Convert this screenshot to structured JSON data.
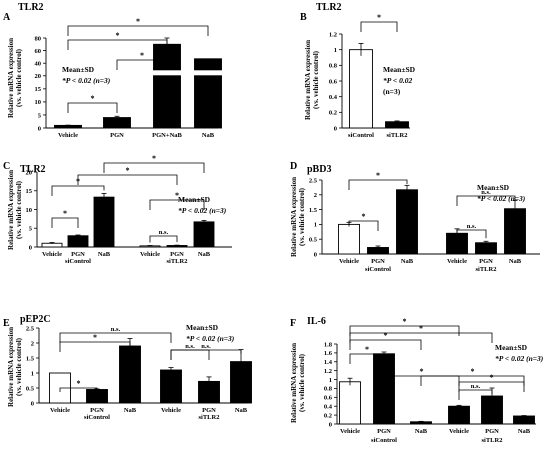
{
  "chart_data": [
    {
      "type": "bar",
      "panel_label": "A",
      "title": "TLR2",
      "ylabel": "Relative mRNA expression (vs. vehicle control)",
      "yticks": [
        "0",
        "5",
        "10",
        "15",
        "20",
        "40",
        "60",
        "80"
      ],
      "categories": [
        "Vehicle",
        "PGN",
        "PGN+NaB",
        "NaB"
      ],
      "values": [
        1.0,
        4.0,
        70,
        47
      ],
      "errors": [
        0.1,
        0.5,
        10,
        0
      ],
      "fills": [
        "#000000",
        "#000000",
        "#000000",
        "#000000"
      ],
      "annotation": [
        "Mean±SD",
        "*P < 0.02 (n=3)"
      ],
      "brackets": [
        {
          "from": 0,
          "to": 1,
          "label": "*"
        },
        {
          "from": 1,
          "to": 2,
          "label": "*"
        },
        {
          "from": 0,
          "to": 2,
          "label": "*"
        },
        {
          "from": 0,
          "to": 3,
          "label": "*"
        }
      ]
    },
    {
      "type": "bar",
      "panel_label": "B",
      "title": "TLR2",
      "ylabel": "Relative mRNA expression (vs. vehicle control)",
      "ylim": [
        0,
        1.2
      ],
      "yticks": [
        "0",
        "0.2",
        "0.4",
        "0.6",
        "0.8",
        "1",
        "1.2"
      ],
      "categories": [
        "siControl",
        "siTLR2"
      ],
      "values": [
        1.0,
        0.08
      ],
      "errors": [
        0.08,
        0.01
      ],
      "fills": [
        "#ffffff",
        "#000000"
      ],
      "annotation": [
        "Mean±SD",
        "*P < 0.02",
        "(n=3)"
      ],
      "brackets": [
        {
          "from": 0,
          "to": 1,
          "label": "*"
        }
      ]
    },
    {
      "type": "bar",
      "panel_label": "C",
      "title": "TLR2",
      "ylabel": "Relative mRNA expression (vs. vehicle control)",
      "ylim": [
        0,
        20
      ],
      "yticks": [
        "0",
        "5",
        "10",
        "15",
        "20"
      ],
      "categories": [
        "Vehicle",
        "PGN",
        "NaB",
        "Vehicle",
        "PGN",
        "NaB"
      ],
      "groups": [
        "siControl",
        "siTLR2"
      ],
      "values": [
        1.0,
        3.0,
        13.3,
        0.3,
        0.4,
        6.7
      ],
      "errors": [
        0.2,
        0.2,
        1.0,
        0.1,
        0.1,
        0.4
      ],
      "fills": [
        "#ffffff",
        "#000000",
        "#000000",
        "#ffffff",
        "#000000",
        "#000000"
      ],
      "annotation": [
        "Mean±SD",
        "*P < 0.02 (n=3)"
      ],
      "brackets": [
        {
          "from": 0,
          "to": 1,
          "label": "*"
        },
        {
          "from": 0,
          "to": 2,
          "label": "*"
        },
        {
          "from": 2,
          "to": 5,
          "label": "*"
        },
        {
          "from": 1,
          "to": 4,
          "label": "*"
        },
        {
          "from": 3,
          "to": 4,
          "label": "n.s."
        },
        {
          "from": 3,
          "to": 5,
          "label": "*"
        }
      ]
    },
    {
      "type": "bar",
      "panel_label": "D",
      "title": "pBD3",
      "ylabel": "Relative mRNA expression (vs. vehicle control)",
      "ylim": [
        0,
        2.5
      ],
      "yticks": [
        "0",
        "0.5",
        "1",
        "1.5",
        "2",
        "2.5"
      ],
      "categories": [
        "Vehicle",
        "PGN",
        "NaB",
        "Vehicle",
        "PGN",
        "NaB"
      ],
      "groups": [
        "siControl",
        "siTLR2"
      ],
      "values": [
        1.0,
        0.22,
        2.17,
        0.7,
        0.38,
        1.53
      ],
      "errors": [
        0.07,
        0.05,
        0.15,
        0.15,
        0.05,
        0.28
      ],
      "fills": [
        "#ffffff",
        "#000000",
        "#000000",
        "#000000",
        "#000000",
        "#000000"
      ],
      "annotation": [
        "Mean±SD",
        "*P < 0.02 (n=3)"
      ],
      "brackets": [
        {
          "from": 0,
          "to": 1,
          "label": "*"
        },
        {
          "from": 0,
          "to": 2,
          "label": "*"
        },
        {
          "from": 3,
          "to": 4,
          "label": "n.s."
        },
        {
          "from": 3,
          "to": 5,
          "label": "n.s."
        }
      ]
    },
    {
      "type": "bar",
      "panel_label": "E",
      "title": "pEP2C",
      "ylabel": "Relative mRNA expression (vs. vehicle control)",
      "ylim": [
        0,
        2.5
      ],
      "yticks": [
        "0",
        "0.5",
        "1",
        "1.5",
        "2",
        "2.5"
      ],
      "categories": [
        "Vehicle",
        "PGN",
        "NaB",
        "Vehicle",
        "PGN",
        "NaB"
      ],
      "groups": [
        "siControl",
        "siTLR2"
      ],
      "values": [
        1.0,
        0.45,
        1.9,
        1.1,
        0.72,
        1.38
      ],
      "errors": [
        0.0,
        0.02,
        0.25,
        0.08,
        0.15,
        0.4
      ],
      "fills": [
        "#ffffff",
        "#000000",
        "#000000",
        "#000000",
        "#000000",
        "#000000"
      ],
      "annotation": [
        "Mean±SD",
        "*P < 0.02 (n=3)"
      ],
      "brackets": [
        {
          "from": 0,
          "to": 1,
          "label": "*"
        },
        {
          "from": 0,
          "to": 2,
          "label": "*"
        },
        {
          "from": 0,
          "to": 3,
          "label": "n.s."
        },
        {
          "from": 3,
          "to": 4,
          "label": "n.s."
        },
        {
          "from": 3,
          "to": 5,
          "label": "n.s."
        }
      ]
    },
    {
      "type": "bar",
      "panel_label": "F",
      "title": "IL-6",
      "ylabel": "Relative mRNA expression (vs. vehicle control)",
      "ylim": [
        0,
        1.8
      ],
      "yticks": [
        "0",
        "0.2",
        "0.4",
        "0.6",
        "0.8",
        "1",
        "1.2",
        "1.4",
        "1.6",
        "1.8"
      ],
      "categories": [
        "Vehicle",
        "PGN",
        "NaB",
        "Vehicle",
        "PGN",
        "NaB"
      ],
      "groups": [
        "siControl",
        "siTLR2"
      ],
      "values": [
        0.95,
        1.58,
        0.05,
        0.4,
        0.63,
        0.18
      ],
      "errors": [
        0.08,
        0.04,
        0.01,
        0.02,
        0.18,
        0.01
      ],
      "fills": [
        "#ffffff",
        "#000000",
        "#000000",
        "#000000",
        "#000000",
        "#000000"
      ],
      "annotation": [
        "Mean±SD",
        "*P < 0.02 (n=3)"
      ],
      "brackets": [
        {
          "from": 0,
          "to": 1,
          "label": "*"
        },
        {
          "from": 0,
          "to": 2,
          "label": "*"
        },
        {
          "from": 0,
          "to": 3,
          "label": "*"
        },
        {
          "from": 0,
          "to": 4,
          "label": "*"
        },
        {
          "from": 1,
          "to": 3,
          "label": "*"
        },
        {
          "from": 2,
          "to": 5,
          "label": "*"
        },
        {
          "from": 3,
          "to": 4,
          "label": "n.s."
        },
        {
          "from": 3,
          "to": 5,
          "label": "*"
        }
      ]
    }
  ]
}
